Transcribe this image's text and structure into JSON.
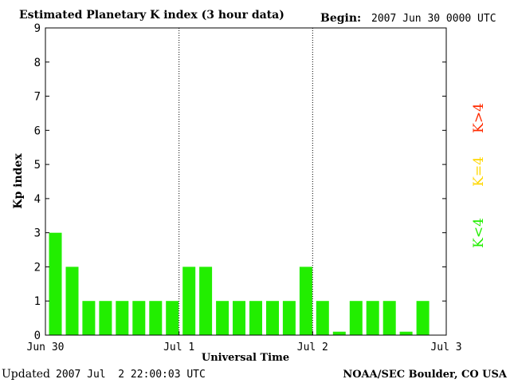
{
  "header": {
    "title": "Estimated Planetary K index (3 hour data)",
    "begin_label": "Begin:",
    "begin_value": "2007 Jun 30 0000 UTC"
  },
  "footer": {
    "updated_label": "Updated",
    "updated_value": "2007 Jul  2 22:00:03 UTC",
    "source": "NOAA/SEC Boulder, CO USA"
  },
  "legend": {
    "high": {
      "label": "K>4",
      "color": "#ff2a00"
    },
    "mid": {
      "label": "K=4",
      "color": "#ffd700"
    },
    "low": {
      "label": "K<4",
      "color": "#22ee00"
    }
  },
  "chart_data": {
    "type": "bar",
    "title": "Estimated Planetary K index (3 hour data)",
    "xlabel": "Universal Time",
    "ylabel": "Kp index",
    "ylim": [
      0,
      9
    ],
    "yticks": [
      "0",
      "1",
      "2",
      "3",
      "4",
      "5",
      "6",
      "7",
      "8",
      "9"
    ],
    "xticks": [
      "Jun 30",
      "Jul 1",
      "Jul 2",
      "Jul 3"
    ],
    "bins_per_day": 8,
    "day_count": 3,
    "day_separators": "dotted",
    "bar_color": "#22ee00",
    "values": [
      3,
      2,
      1,
      1,
      1,
      1,
      1,
      1,
      2,
      2,
      1,
      1,
      1,
      1,
      1,
      2,
      1,
      0.1,
      1,
      1,
      1,
      0.1,
      1
    ]
  }
}
